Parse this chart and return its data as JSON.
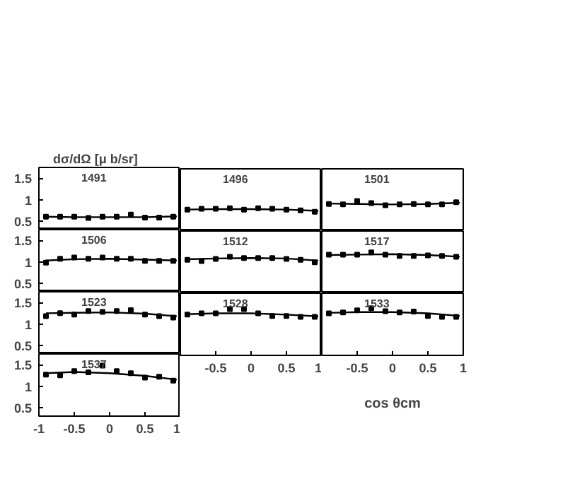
{
  "chart_data": [
    {
      "type": "scatter",
      "title": "1491",
      "ylabel": "dσ/dΩ [μ b/sr]",
      "xlim": [
        -1,
        1
      ],
      "ylim": [
        0.3,
        1.75
      ],
      "yticks": [
        0.5,
        1,
        1.5
      ],
      "tick_labels": "y",
      "x": [
        -0.9,
        -0.7,
        -0.5,
        -0.3,
        -0.1,
        0.1,
        0.3,
        0.5,
        0.7,
        0.9
      ],
      "series": [
        {
          "color": "#000000",
          "marker": "square",
          "values": [
            0.6,
            0.6,
            0.6,
            0.57,
            0.6,
            0.6,
            0.65,
            0.58,
            0.58,
            0.6
          ]
        },
        {
          "type": "line",
          "color": "#000000",
          "x": [
            -0.9,
            -0.5,
            0,
            0.5,
            0.95
          ],
          "values": [
            0.6,
            0.59,
            0.59,
            0.59,
            0.61
          ]
        }
      ]
    },
    {
      "type": "scatter",
      "title": "1496",
      "xlim": [
        -1,
        1
      ],
      "ylim": [
        0.3,
        1.75
      ],
      "tick_labels": false,
      "x": [
        -0.9,
        -0.7,
        -0.5,
        -0.3,
        -0.1,
        0.1,
        0.3,
        0.5,
        0.7,
        0.9
      ],
      "series": [
        {
          "color": "#000000",
          "marker": "square",
          "values": [
            0.8,
            0.82,
            0.82,
            0.83,
            0.8,
            0.83,
            0.82,
            0.8,
            0.78,
            0.75
          ]
        },
        {
          "type": "line",
          "color": "#000000",
          "x": [
            -0.9,
            -0.5,
            0,
            0.5,
            0.95
          ],
          "values": [
            0.8,
            0.81,
            0.81,
            0.8,
            0.77
          ]
        }
      ]
    },
    {
      "type": "scatter",
      "title": "1501",
      "xlim": [
        -1,
        1
      ],
      "ylim": [
        0.3,
        1.75
      ],
      "tick_labels": false,
      "x": [
        -0.9,
        -0.7,
        -0.5,
        -0.3,
        -0.1,
        0.1,
        0.3,
        0.5,
        0.7,
        0.9
      ],
      "series": [
        {
          "color": "#000000",
          "marker": "square",
          "values": [
            0.93,
            0.92,
            1.0,
            0.95,
            0.9,
            0.92,
            0.93,
            0.92,
            0.92,
            0.97
          ]
        },
        {
          "type": "line",
          "color": "#000000",
          "x": [
            -0.9,
            -0.5,
            0,
            0.5,
            0.95
          ],
          "values": [
            0.94,
            0.93,
            0.92,
            0.93,
            0.96
          ]
        }
      ]
    },
    {
      "type": "scatter",
      "title": "1506",
      "xlim": [
        -1,
        1
      ],
      "ylim": [
        0.3,
        1.75
      ],
      "yticks": [
        0.5,
        1,
        1.5
      ],
      "tick_labels": "y",
      "x": [
        -0.9,
        -0.7,
        -0.5,
        -0.3,
        -0.1,
        0.1,
        0.3,
        0.5,
        0.7,
        0.9
      ],
      "series": [
        {
          "color": "#000000",
          "marker": "square",
          "values": [
            0.98,
            1.07,
            1.1,
            1.07,
            1.1,
            1.07,
            1.07,
            1.02,
            1.02,
            1.02
          ]
        },
        {
          "type": "line",
          "color": "#000000",
          "x": [
            -0.9,
            -0.5,
            0,
            0.5,
            0.95
          ],
          "values": [
            1.03,
            1.06,
            1.07,
            1.05,
            1.03
          ]
        }
      ]
    },
    {
      "type": "scatter",
      "title": "1512",
      "xlim": [
        -1,
        1
      ],
      "ylim": [
        0.3,
        1.75
      ],
      "tick_labels": false,
      "x": [
        -0.9,
        -0.7,
        -0.5,
        -0.3,
        -0.1,
        0.1,
        0.3,
        0.5,
        0.7,
        0.9
      ],
      "series": [
        {
          "color": "#000000",
          "marker": "square",
          "values": [
            1.08,
            1.05,
            1.1,
            1.15,
            1.12,
            1.12,
            1.12,
            1.1,
            1.08,
            1.02
          ]
        },
        {
          "type": "line",
          "color": "#000000",
          "x": [
            -0.9,
            -0.5,
            0,
            0.5,
            0.95
          ],
          "values": [
            1.09,
            1.11,
            1.12,
            1.11,
            1.06
          ]
        }
      ]
    },
    {
      "type": "scatter",
      "title": "1517",
      "xlim": [
        -1,
        1
      ],
      "ylim": [
        0.3,
        1.75
      ],
      "tick_labels": false,
      "x": [
        -0.9,
        -0.7,
        -0.5,
        -0.3,
        -0.1,
        0.1,
        0.3,
        0.5,
        0.7,
        0.9
      ],
      "series": [
        {
          "color": "#000000",
          "marker": "square",
          "values": [
            1.2,
            1.2,
            1.2,
            1.25,
            1.2,
            1.17,
            1.17,
            1.18,
            1.17,
            1.15
          ]
        },
        {
          "type": "line",
          "color": "#000000",
          "x": [
            -0.9,
            -0.5,
            0,
            0.5,
            0.95
          ],
          "values": [
            1.19,
            1.2,
            1.21,
            1.19,
            1.15
          ]
        }
      ]
    },
    {
      "type": "scatter",
      "title": "1523",
      "xlim": [
        -1,
        1
      ],
      "ylim": [
        0.3,
        1.75
      ],
      "yticks": [
        0.5,
        1,
        1.5
      ],
      "tick_labels": "y",
      "x": [
        -0.9,
        -0.7,
        -0.5,
        -0.3,
        -0.1,
        0.1,
        0.3,
        0.5,
        0.7,
        0.9
      ],
      "series": [
        {
          "color": "#000000",
          "marker": "square",
          "values": [
            1.18,
            1.25,
            1.22,
            1.3,
            1.28,
            1.3,
            1.32,
            1.22,
            1.18,
            1.15
          ]
        },
        {
          "type": "line",
          "color": "#000000",
          "x": [
            -0.9,
            -0.5,
            0,
            0.5,
            0.95
          ],
          "values": [
            1.25,
            1.26,
            1.27,
            1.24,
            1.18
          ]
        }
      ]
    },
    {
      "type": "scatter",
      "title": "1528",
      "xlim": [
        -1,
        1
      ],
      "ylim": [
        0.3,
        1.75
      ],
      "xticks": [
        {
          "value": -1,
          "label": null
        },
        -0.5,
        0,
        0.5,
        1
      ],
      "tick_labels": "x",
      "x": [
        -0.9,
        -0.7,
        -0.5,
        -0.3,
        -0.1,
        0.1,
        0.3,
        0.5,
        0.7,
        0.9
      ],
      "series": [
        {
          "color": "#000000",
          "marker": "square",
          "values": [
            1.25,
            1.28,
            1.28,
            1.38,
            1.38,
            1.28,
            1.22,
            1.22,
            1.2,
            1.2
          ]
        },
        {
          "type": "line",
          "color": "#000000",
          "x": [
            -0.9,
            -0.5,
            0,
            0.5,
            0.95
          ],
          "values": [
            1.26,
            1.28,
            1.28,
            1.25,
            1.21
          ]
        }
      ]
    },
    {
      "type": "scatter",
      "title": "1533",
      "xlabel": "cos θcm",
      "xlim": [
        -1,
        1
      ],
      "ylim": [
        0.3,
        1.75
      ],
      "xticks": [
        {
          "value": -1,
          "label": null
        },
        -0.5,
        0,
        0.5,
        1
      ],
      "tick_labels": "x",
      "x": [
        -0.9,
        -0.7,
        -0.5,
        -0.3,
        -0.1,
        0.1,
        0.3,
        0.5,
        0.7,
        0.9
      ],
      "series": [
        {
          "color": "#000000",
          "marker": "square",
          "values": [
            1.28,
            1.3,
            1.35,
            1.4,
            1.33,
            1.3,
            1.32,
            1.22,
            1.2,
            1.2
          ]
        },
        {
          "type": "line",
          "color": "#000000",
          "x": [
            -0.9,
            -0.5,
            0,
            0.5,
            0.95
          ],
          "values": [
            1.29,
            1.31,
            1.31,
            1.28,
            1.22
          ]
        }
      ]
    },
    {
      "type": "scatter",
      "title": "1537",
      "xlim": [
        -1,
        1
      ],
      "ylim": [
        0.3,
        1.75
      ],
      "xticks": [
        -1,
        -0.5,
        0,
        0.5,
        1
      ],
      "yticks": [
        0.5,
        1,
        1.5
      ],
      "x": [
        -0.9,
        -0.7,
        -0.5,
        -0.3,
        -0.1,
        0.1,
        0.3,
        0.5,
        0.7,
        0.9
      ],
      "series": [
        {
          "color": "#000000",
          "marker": "square",
          "values": [
            1.27,
            1.25,
            1.35,
            1.32,
            1.48,
            1.35,
            1.3,
            1.2,
            1.22,
            1.13
          ]
        },
        {
          "type": "line",
          "color": "#000000",
          "x": [
            -0.9,
            -0.5,
            0,
            0.5,
            0.95
          ],
          "values": [
            1.3,
            1.33,
            1.3,
            1.24,
            1.15
          ]
        }
      ]
    }
  ]
}
